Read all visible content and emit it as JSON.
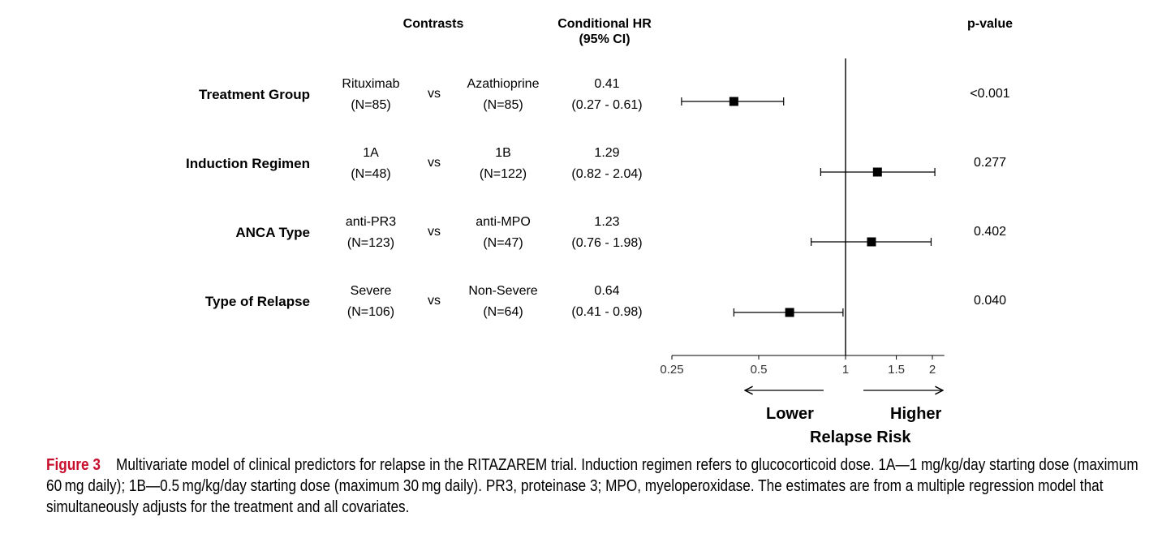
{
  "headers": {
    "contrasts": "Contrasts",
    "hr_line1": "Conditional HR",
    "hr_line2": "(95% CI)",
    "pvalue": "p-value"
  },
  "rows": [
    {
      "label": "Treatment Group",
      "group_a": "Rituximab",
      "n_a": "(N=85)",
      "vs": "vs",
      "group_b": "Azathioprine",
      "n_b": "(N=85)",
      "hr": "0.41",
      "ci": "(0.27 - 0.61)",
      "p": "<0.001"
    },
    {
      "label": "Induction Regimen",
      "group_a": "1A",
      "n_a": "(N=48)",
      "vs": "vs",
      "group_b": "1B",
      "n_b": "(N=122)",
      "hr": "1.29",
      "ci": "(0.82 - 2.04)",
      "p": "0.277"
    },
    {
      "label": "ANCA Type",
      "group_a": "anti-PR3",
      "n_a": "(N=123)",
      "vs": "vs",
      "group_b": "anti-MPO",
      "n_b": "(N=47)",
      "hr": "1.23",
      "ci": "(0.76 - 1.98)",
      "p": "0.402"
    },
    {
      "label": "Type of Relapse",
      "group_a": "Severe",
      "n_a": "(N=106)",
      "vs": "vs",
      "group_b": "Non-Severe",
      "n_b": "(N=64)",
      "hr": "0.64",
      "ci": "(0.41 - 0.98)",
      "p": "0.040"
    }
  ],
  "axis": {
    "ticks": [
      0.25,
      0.5,
      1,
      1.5,
      2
    ],
    "tick_labels": [
      "0.25",
      "0.5",
      "1",
      "1.5",
      "2"
    ],
    "lower": "Lower",
    "higher": "Higher",
    "title": "Relapse Risk"
  },
  "caption": {
    "label": "Figure 3",
    "text": "Multivariate model of clinical predictors for relapse in the RITAZAREM trial. Induction regimen refers to glucocorticoid dose. 1A—1 mg/kg/day starting dose (maximum 60 mg daily); 1B—0.5 mg/kg/day starting dose (maximum 30 mg daily). PR3, proteinase 3; MPO, myeloperoxidase. The estimates are from a multiple regression model that simultaneously adjusts for the treatment and all covariates."
  },
  "chart_data": {
    "type": "forest",
    "scale": "log",
    "xlim": [
      0.25,
      2.2
    ],
    "reference_line": 1,
    "xlabel": "Relapse Risk",
    "categories": [
      "Treatment Group",
      "Induction Regimen",
      "ANCA Type",
      "Type of Relapse"
    ],
    "estimates": [
      0.41,
      1.29,
      1.23,
      0.64
    ],
    "ci_lower": [
      0.27,
      0.82,
      0.76,
      0.41
    ],
    "ci_upper": [
      0.61,
      2.04,
      1.98,
      0.98
    ],
    "p_values": [
      "<0.001",
      "0.277",
      "0.402",
      "0.040"
    ]
  }
}
